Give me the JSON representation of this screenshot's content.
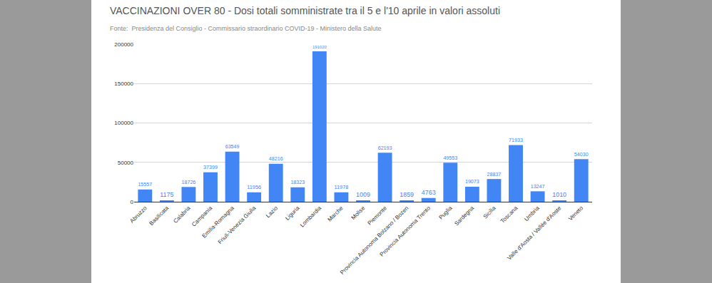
{
  "chart_data": {
    "type": "bar",
    "title": "VACCINAZIONI OVER 80 - Dosi totali somministrate tra il 5 e l'10 aprile in valori assoluti",
    "subtitle": "Fonte:  Presidenza del Consiglio - Commissario straordinario COVID-19 - Ministero della Salute",
    "categories": [
      "Abruzzo",
      "Basilicata",
      "Calabria",
      "Campania",
      "Emilia-Romagna",
      "Friuli-Venezia Giulia",
      "Lazio",
      "Liguria",
      "Lombardia",
      "Marche",
      "Molise",
      "Piemonte",
      "Provincia Autonoma Bolzano / Bozen",
      "Provincia Autonoma Trento",
      "Puglia",
      "Sardegna",
      "Sicilia",
      "Toscana",
      "Umbria",
      "Valle d'Aosta / Vallée d'Aoste",
      "Veneto"
    ],
    "values": [
      15557,
      1175,
      18726,
      37399,
      63549,
      11956,
      48216,
      18323,
      191020,
      11978,
      1009,
      62193,
      1859,
      4763,
      49553,
      19073,
      28837,
      71933,
      13247,
      1010,
      54030
    ],
    "color": "#4285f4",
    "ylim": [
      0,
      200000
    ],
    "yticks": [
      0,
      50000,
      100000,
      150000,
      200000
    ],
    "grid": true,
    "data_labels": true
  }
}
